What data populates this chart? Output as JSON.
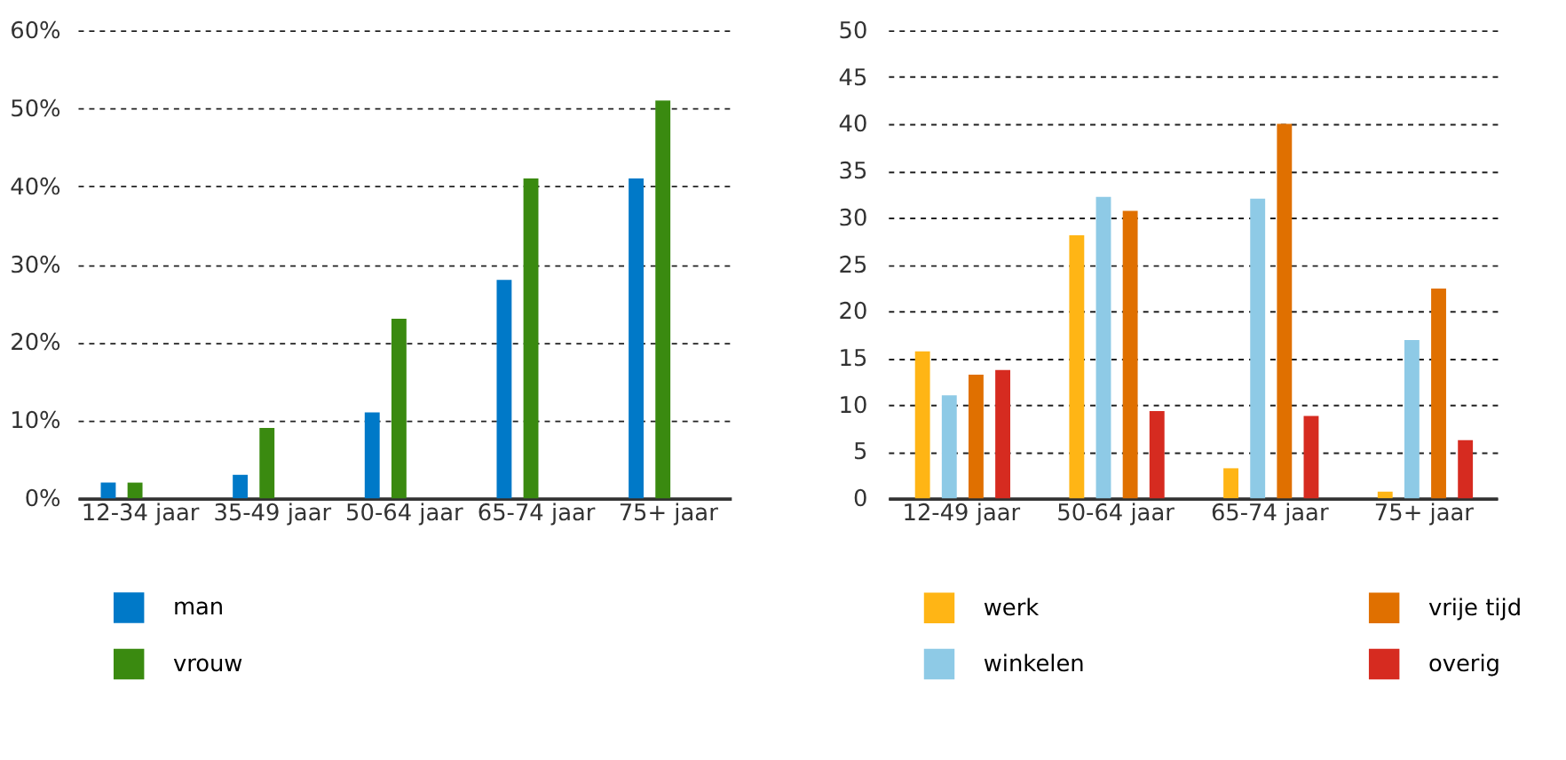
{
  "chart_data": [
    {
      "type": "bar",
      "categories": [
        "12-34 jaar",
        "35-49 jaar",
        "50-64 jaar",
        "65-74 jaar",
        "75+ jaar"
      ],
      "series": [
        {
          "name": "man",
          "color": "#0079c8",
          "values": [
            2,
            3,
            11,
            28,
            41
          ]
        },
        {
          "name": "vrouw",
          "color": "#3a8a10",
          "values": [
            2,
            9,
            23,
            41,
            51
          ]
        }
      ],
      "ylim": [
        0,
        60
      ],
      "yticks": [
        {
          "value": 0,
          "label": "0%"
        },
        {
          "value": 10,
          "label": "10%"
        },
        {
          "value": 20,
          "label": "20%"
        },
        {
          "value": 30,
          "label": "30%"
        },
        {
          "value": 40,
          "label": "40%"
        },
        {
          "value": 50,
          "label": "50%"
        },
        {
          "value": 60,
          "label": "60%"
        }
      ],
      "grid": "y",
      "legend": "bottom"
    },
    {
      "type": "bar",
      "categories": [
        "12-49 jaar",
        "50-64 jaar",
        "65-74 jaar",
        "75+ jaar"
      ],
      "series": [
        {
          "name": "werk",
          "color": "#ffb515",
          "values": [
            15.7,
            28.1,
            3.2,
            0.7
          ]
        },
        {
          "name": "winkelen",
          "color": "#8ecae6",
          "values": [
            11,
            32.2,
            32,
            16.9
          ]
        },
        {
          "name": "vrije tijd",
          "color": "#e07000",
          "values": [
            13.2,
            30.7,
            40,
            22.4
          ]
        },
        {
          "name": "overig",
          "color": "#d62b20",
          "values": [
            13.7,
            9.3,
            8.8,
            6.2
          ]
        }
      ],
      "ylim": [
        0,
        50
      ],
      "yticks": [
        0,
        5,
        10,
        15,
        20,
        25,
        30,
        35,
        40,
        45,
        50
      ],
      "grid": "y",
      "legend": "bottom"
    }
  ]
}
